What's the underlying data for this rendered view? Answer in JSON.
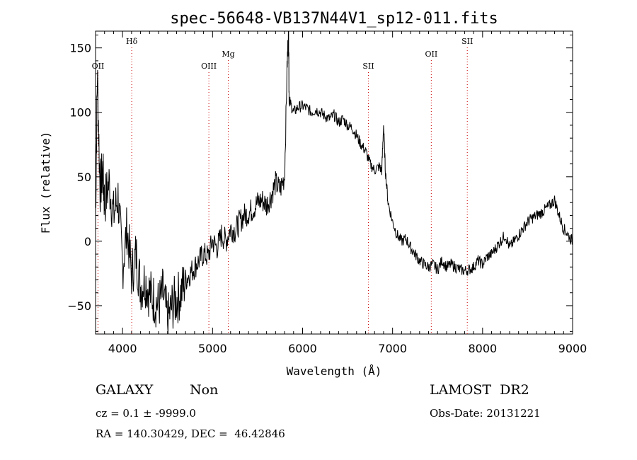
{
  "chart_data": {
    "type": "line",
    "title": "spec-56648-VB137N44V1_sp12-011.fits",
    "xlabel": "Wavelength (Å)",
    "ylabel": "Flux (relative)",
    "xlim": [
      3700,
      9000
    ],
    "ylim": [
      -72,
      163
    ],
    "x_ticks": [
      4000,
      5000,
      6000,
      7000,
      8000,
      9000
    ],
    "y_ticks": [
      -50,
      0,
      50,
      100,
      150
    ],
    "grid": false,
    "line_color": "#000000",
    "marker_color": "#cc0000",
    "spectral_lines": [
      {
        "name": "OII",
        "x": 3727,
        "label_row": 2
      },
      {
        "name": "Hδ",
        "x": 4102,
        "label_row": 0
      },
      {
        "name": "OIII",
        "x": 4959,
        "label_row": 2
      },
      {
        "name": "Mg",
        "x": 5175,
        "label_row": 1
      },
      {
        "name": "SII",
        "x": 6731,
        "label_row": 2
      },
      {
        "name": "OII",
        "x": 7430,
        "label_row": 1
      },
      {
        "name": "SII",
        "x": 7830,
        "label_row": 0
      }
    ],
    "series": [
      {
        "x": [
          3700,
          3720,
          3750,
          3780,
          3800,
          3850,
          3900,
          3950,
          4000,
          4050,
          4100,
          4150,
          4200,
          4250,
          4300,
          4350,
          4400,
          4450,
          4500,
          4550,
          4600,
          4650,
          4700,
          4750,
          4800,
          4850,
          4900,
          4950,
          5000,
          5050,
          5100,
          5150,
          5200,
          5250,
          5300,
          5350,
          5400,
          5450,
          5500,
          5550,
          5600,
          5650,
          5700,
          5750,
          5800,
          5830,
          5845,
          5850,
          5860,
          5900,
          5950,
          6000,
          6050,
          6100,
          6150,
          6200,
          6250,
          6300,
          6350,
          6400,
          6450,
          6500,
          6550,
          6600,
          6650,
          6700,
          6750,
          6800,
          6850,
          6880,
          6900,
          6920,
          6950,
          7000,
          7050,
          7100,
          7150,
          7200,
          7250,
          7300,
          7350,
          7400,
          7450,
          7500,
          7550,
          7600,
          7650,
          7700,
          7750,
          7800,
          7850,
          7900,
          7950,
          8000,
          8050,
          8100,
          8150,
          8200,
          8250,
          8300,
          8350,
          8400,
          8450,
          8500,
          8550,
          8600,
          8650,
          8700,
          8750,
          8800,
          8850,
          8900,
          8950,
          9000
        ],
        "y": [
          20,
          130,
          40,
          55,
          30,
          45,
          20,
          35,
          -20,
          10,
          -25,
          -10,
          -35,
          -30,
          -40,
          -45,
          -50,
          -40,
          -62,
          -50,
          -45,
          -40,
          -30,
          -25,
          -20,
          -15,
          -10,
          -12,
          0,
          -5,
          5,
          0,
          10,
          8,
          15,
          20,
          22,
          25,
          30,
          32,
          28,
          35,
          45,
          40,
          50,
          140,
          163,
          110,
          108,
          100,
          104,
          105,
          103,
          100,
          102,
          100,
          97,
          95,
          98,
          92,
          95,
          90,
          88,
          82,
          75,
          70,
          60,
          55,
          58,
          55,
          90,
          55,
          30,
          15,
          5,
          0,
          2,
          -5,
          -10,
          -15,
          -18,
          -20,
          -18,
          -22,
          -15,
          -20,
          -18,
          -20,
          -22,
          -23,
          -22,
          -20,
          -15,
          -18,
          -12,
          -10,
          -5,
          0,
          5,
          -5,
          0,
          5,
          10,
          15,
          18,
          20,
          22,
          25,
          28,
          32,
          20,
          10,
          5,
          0
        ]
      }
    ]
  },
  "info": {
    "object_type": "GALAXY",
    "subclass": "Non",
    "survey": "LAMOST  DR2",
    "cz": "cz = 0.1 ± -9999.0",
    "obs_date": "Obs-Date: 20131221",
    "coords": "RA = 140.30429, DEC =  46.42846"
  }
}
